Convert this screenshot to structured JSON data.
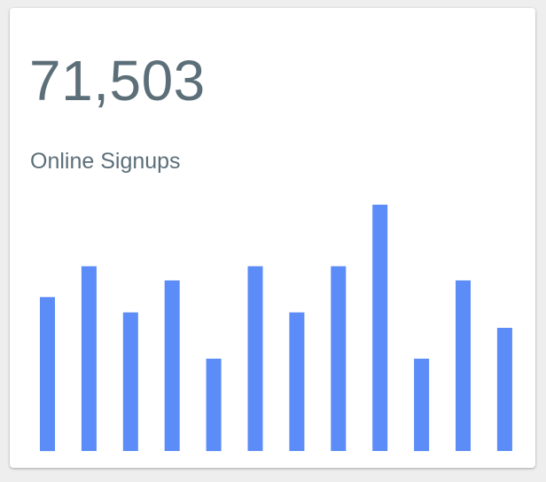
{
  "card": {
    "value": "71,503",
    "label": "Online Signups"
  },
  "colors": {
    "bar": "#5b8cf7",
    "text": "#5c6f79",
    "card": "#ffffff",
    "background": "#eeeeef"
  },
  "chart_data": {
    "type": "bar",
    "values": [
      25,
      30,
      22.5,
      27.7,
      15,
      30,
      22.5,
      30,
      40,
      15,
      27.7,
      20
    ]
  }
}
